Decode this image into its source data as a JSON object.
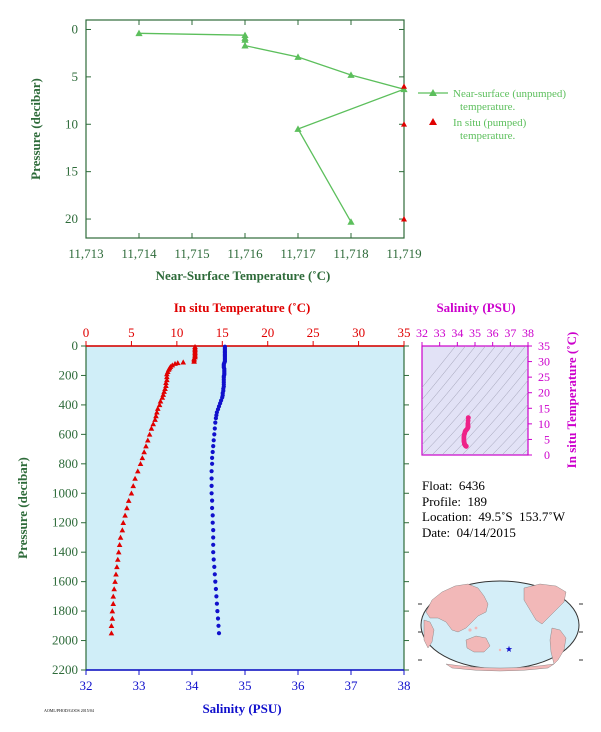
{
  "colors": {
    "axis_green": "#2e6b3a",
    "line_green": "#5cbf5c",
    "temp_red": "#e00000",
    "sal_blue": "#1010cc",
    "title_magenta": "#cc00cc",
    "plot_bg": "#d0eef8",
    "diagram_bg": "#e2e2f6",
    "ts_pink": "#ee2288"
  },
  "chart_data": [
    {
      "type": "line",
      "title": "",
      "xlabel": "Near-Surface Temperature (˚C)",
      "ylabel": "Pressure (decibar)",
      "xlim": [
        11.713,
        11.719
      ],
      "ylim": [
        22,
        -1
      ],
      "x_ticks": [
        "11,713",
        "11,714",
        "11,715",
        "11,716",
        "11,717",
        "11,718",
        "11,719"
      ],
      "y_ticks": [
        "0",
        "5",
        "10",
        "15",
        "20"
      ],
      "y_tick_values": [
        0,
        5,
        10,
        15,
        20
      ],
      "legend_position": "right",
      "series": [
        {
          "name": "Near-surface (unpumped) temperature.",
          "legend_lines": [
            "Near-surface (unpumped)",
            "temperature."
          ],
          "color": "#5cbf5c",
          "marker": "triangle",
          "points": [
            [
              11.714,
              0.4
            ],
            [
              11.716,
              0.6
            ],
            [
              11.716,
              0.9
            ],
            [
              11.716,
              1.1
            ],
            [
              11.716,
              1.7
            ],
            [
              11.717,
              2.9
            ],
            [
              11.718,
              4.8
            ],
            [
              11.719,
              6.3
            ],
            [
              11.717,
              10.5
            ],
            [
              11.718,
              20.3
            ]
          ]
        },
        {
          "name": "In situ (pumped) temperature.",
          "legend_lines": [
            "In situ (pumped)",
            "temperature."
          ],
          "color": "#e00000",
          "marker": "triangle",
          "points": [
            [
              11.719,
              6.0
            ],
            [
              11.719,
              10.0
            ],
            [
              11.719,
              20.0
            ]
          ]
        }
      ]
    },
    {
      "type": "scatter",
      "title": "",
      "xlabel_top": "In situ Temperature (˚C)",
      "xlabel_bottom": "Salinity (PSU)",
      "ylabel": "Pressure (decibar)",
      "temp_lim": [
        0,
        35
      ],
      "sal_lim": [
        32,
        38
      ],
      "ylim": [
        2200,
        0
      ],
      "temp_ticks": [
        "0",
        "5",
        "10",
        "15",
        "20",
        "25",
        "30",
        "35"
      ],
      "sal_ticks": [
        "32",
        "33",
        "34",
        "35",
        "36",
        "37",
        "38"
      ],
      "y_ticks": [
        "0",
        "200",
        "400",
        "600",
        "800",
        "1000",
        "1200",
        "1400",
        "1600",
        "1800",
        "2000",
        "2200"
      ],
      "y_tick_values": [
        0,
        200,
        400,
        600,
        800,
        1000,
        1200,
        1400,
        1600,
        1800,
        2000,
        2200
      ],
      "series": [
        {
          "name": "In situ Temperature",
          "color": "#e00000",
          "marker": "triangle",
          "pressure": [
            5,
            15,
            25,
            35,
            45,
            55,
            65,
            75,
            85,
            95,
            105,
            110,
            115,
            120,
            130,
            140,
            150,
            160,
            175,
            190,
            210,
            230,
            250,
            270,
            290,
            310,
            330,
            350,
            375,
            400,
            425,
            450,
            475,
            500,
            530,
            560,
            600,
            640,
            680,
            720,
            760,
            800,
            850,
            900,
            950,
            1000,
            1050,
            1100,
            1150,
            1200,
            1250,
            1300,
            1350,
            1400,
            1450,
            1500,
            1550,
            1600,
            1650,
            1700,
            1750,
            1800,
            1850,
            1900,
            1950
          ],
          "temp": [
            12.0,
            12.0,
            12.0,
            12.0,
            12.0,
            12.0,
            12.0,
            12.0,
            11.9,
            11.9,
            11.9,
            10.7,
            10.1,
            9.8,
            9.5,
            9.3,
            9.2,
            9.1,
            9.0,
            8.9,
            8.9,
            8.9,
            8.8,
            8.8,
            8.7,
            8.6,
            8.5,
            8.4,
            8.2,
            8.1,
            7.9,
            7.8,
            7.7,
            7.6,
            7.4,
            7.2,
            7.0,
            6.8,
            6.6,
            6.4,
            6.2,
            6.0,
            5.7,
            5.4,
            5.2,
            5.0,
            4.7,
            4.5,
            4.3,
            4.1,
            4.0,
            3.8,
            3.7,
            3.6,
            3.5,
            3.4,
            3.3,
            3.2,
            3.1,
            3.0,
            3.0,
            2.9,
            2.9,
            2.8,
            2.8
          ]
        },
        {
          "name": "Salinity",
          "color": "#1010cc",
          "marker": "circle",
          "pressure": [
            5,
            15,
            25,
            35,
            45,
            55,
            65,
            75,
            85,
            95,
            105,
            115,
            125,
            135,
            145,
            155,
            165,
            175,
            185,
            195,
            205,
            215,
            230,
            245,
            260,
            275,
            290,
            305,
            320,
            335,
            350,
            370,
            390,
            410,
            430,
            450,
            470,
            490,
            520,
            560,
            600,
            640,
            680,
            720,
            760,
            800,
            850,
            900,
            950,
            1000,
            1050,
            1100,
            1150,
            1200,
            1250,
            1300,
            1350,
            1400,
            1450,
            1500,
            1550,
            1600,
            1650,
            1700,
            1750,
            1800,
            1850,
            1900,
            1950
          ],
          "sal": [
            34.62,
            34.62,
            34.62,
            34.62,
            34.62,
            34.62,
            34.62,
            34.62,
            34.62,
            34.62,
            34.62,
            34.61,
            34.6,
            34.6,
            34.6,
            34.61,
            34.61,
            34.61,
            34.61,
            34.61,
            34.6,
            34.6,
            34.6,
            34.6,
            34.6,
            34.6,
            34.59,
            34.59,
            34.58,
            34.58,
            34.57,
            34.55,
            34.53,
            34.51,
            34.49,
            34.47,
            34.46,
            34.45,
            34.44,
            34.43,
            34.42,
            34.41,
            34.4,
            34.39,
            34.38,
            34.38,
            34.37,
            34.37,
            34.37,
            34.37,
            34.38,
            34.38,
            34.39,
            34.39,
            34.4,
            34.4,
            34.4,
            34.4,
            34.41,
            34.42,
            34.43,
            34.44,
            34.45,
            34.46,
            34.47,
            34.48,
            34.49,
            34.5,
            34.51
          ]
        }
      ]
    },
    {
      "type": "scatter",
      "title": "",
      "xlabel": "Salinity (PSU)",
      "ylabel": "In situ Temperature (˚C)",
      "xlim": [
        32,
        38
      ],
      "ylim": [
        0,
        35
      ],
      "x_ticks": [
        "32",
        "33",
        "34",
        "35",
        "36",
        "37",
        "38"
      ],
      "y_ticks": [
        "0",
        "5",
        "10",
        "15",
        "20",
        "25",
        "30",
        "35"
      ],
      "y_tick_values": [
        0,
        5,
        10,
        15,
        20,
        25,
        30,
        35
      ],
      "series": [
        {
          "name": "T-S profile",
          "color": "#ee2288",
          "marker": "circle",
          "points": [
            [
              34.62,
              12.0
            ],
            [
              34.62,
              11.9
            ],
            [
              34.61,
              11.0
            ],
            [
              34.6,
              10.1
            ],
            [
              34.6,
              9.6
            ],
            [
              34.61,
              9.2
            ],
            [
              34.6,
              9.0
            ],
            [
              34.6,
              8.8
            ],
            [
              34.58,
              8.6
            ],
            [
              34.55,
              8.3
            ],
            [
              34.5,
              8.0
            ],
            [
              34.47,
              7.8
            ],
            [
              34.44,
              7.5
            ],
            [
              34.42,
              7.1
            ],
            [
              34.4,
              6.7
            ],
            [
              34.38,
              6.2
            ],
            [
              34.37,
              5.7
            ],
            [
              34.37,
              5.2
            ],
            [
              34.37,
              4.7
            ],
            [
              34.38,
              4.3
            ],
            [
              34.39,
              4.0
            ],
            [
              34.4,
              3.7
            ],
            [
              34.4,
              3.5
            ],
            [
              34.42,
              3.3
            ],
            [
              34.44,
              3.1
            ],
            [
              34.46,
              3.0
            ],
            [
              34.48,
              2.9
            ],
            [
              34.5,
              2.8
            ],
            [
              34.51,
              2.8
            ]
          ]
        }
      ]
    }
  ],
  "info": {
    "float": "Float:  6436",
    "profile": "Profile:  189",
    "location": "Location:  49.5˚S  153.7˚W",
    "date": "Date:  04/14/2015"
  },
  "footer": {
    "stamp": "AOML/PHOD/GOOS 2015/04"
  },
  "map": {
    "marker_lat": -49.5,
    "marker_lon": -153.7,
    "marker_icon": "star-icon",
    "land_color": "#f2b8b8",
    "ocean_color": "#d4eef8"
  }
}
